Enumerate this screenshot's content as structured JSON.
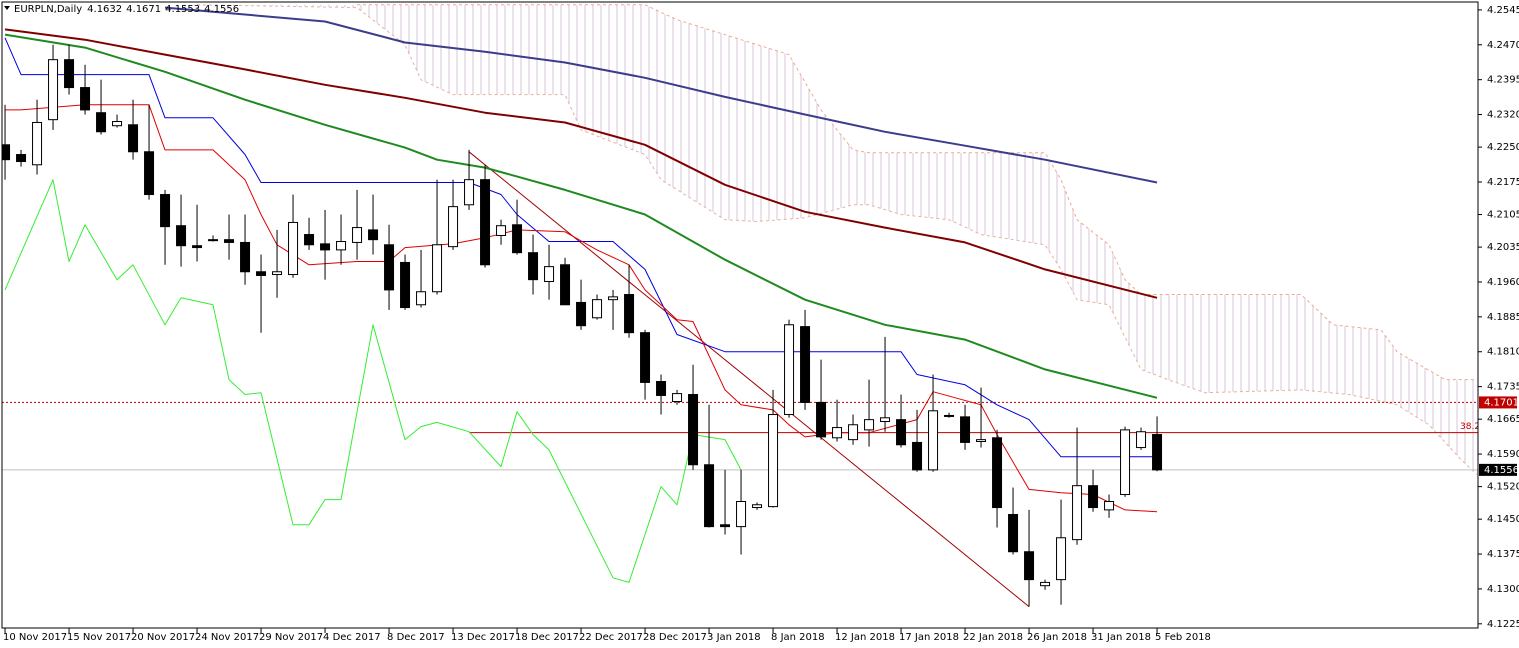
{
  "chart_data": {
    "type": "candlestick",
    "symbol": "EURPLN,Daily",
    "categories": [
      "10 Nov 2017",
      null,
      null,
      null,
      "15 Nov 2017",
      null,
      null,
      null,
      "20 Nov 2017",
      null,
      null,
      null,
      "24 Nov 2017",
      null,
      null,
      null,
      "29 Nov 2017",
      null,
      null,
      null,
      "4 Dec 2017",
      null,
      null,
      null,
      "8 Dec 2017",
      null,
      null,
      null,
      "13 Dec 2017",
      null,
      null,
      null,
      "18 Dec 2017",
      null,
      null,
      null,
      "22 Dec 2017",
      null,
      null,
      null,
      "28 Dec 2017",
      null,
      null,
      null,
      "3 Jan 2018",
      null,
      null,
      null,
      "8 Jan 2018",
      null,
      null,
      null,
      "12 Jan 2018",
      null,
      null,
      null,
      "17 Jan 2018",
      null,
      null,
      null,
      "22 Jan 2018",
      null,
      null,
      null,
      "26 Jan 2018",
      null,
      null,
      null,
      "31 Jan 2018",
      null,
      null,
      null,
      "5 Feb 2018"
    ],
    "open": [
      4.2255,
      4.2234,
      4.2212,
      4.2309,
      4.2438,
      4.2378,
      4.2324,
      4.2296,
      4.2298,
      4.224,
      4.2148,
      4.2081,
      4.2038,
      4.2051,
      4.2051,
      4.2045,
      4.1982,
      4.1976,
      4.1976,
      4.2062,
      4.2042,
      4.2029,
      4.2045,
      4.2072,
      4.204,
      4.2002,
      4.1911,
      4.1939,
      4.2036,
      4.2126,
      4.218,
      4.206,
      4.2083,
      4.2023,
      4.1961,
      4.1997,
      4.1916,
      4.1883,
      4.1922,
      4.1933,
      4.1851,
      4.1746,
      4.1703,
      4.1718,
      4.1567,
      4.1438,
      4.1434,
      4.1475,
      4.1477,
      4.1675,
      4.1864,
      4.1701,
      4.1625,
      4.1621,
      4.1642,
      4.166,
      4.1664,
      4.1615,
      4.1556,
      4.1673,
      4.167,
      4.1617,
      4.1625,
      4.146,
      4.138,
      4.1307,
      4.132,
      4.1406,
      4.1522,
      4.147,
      4.1503,
      4.1604,
      4.1632
    ],
    "high": [
      4.2341,
      4.2244,
      4.2352,
      4.247,
      4.247,
      4.2427,
      4.2395,
      4.232,
      4.2352,
      4.2341,
      4.2158,
      4.2148,
      4.2126,
      4.206,
      4.2105,
      4.2105,
      4.2019,
      4.2072,
      4.2148,
      4.2098,
      4.2115,
      4.2105,
      4.2158,
      4.2148,
      4.2083,
      4.2019,
      4.2029,
      4.218,
      4.218,
      4.2244,
      4.2212,
      4.2094,
      4.2137,
      4.2062,
      4.204,
      4.2012,
      4.1965,
      4.1933,
      4.1943,
      4.1997,
      4.1857,
      4.1761,
      4.1728,
      4.1782,
      4.1696,
      4.1556,
      4.1556,
      4.1486,
      4.1728,
      4.1879,
      4.19,
      4.1793,
      4.1707,
      4.1675,
      4.175,
      4.1842,
      4.1718,
      4.1685,
      4.1761,
      4.1679,
      4.1696,
      4.1733,
      4.1642,
      4.1518,
      4.147,
      4.132,
      4.1492,
      4.1647,
      4.1556,
      4.1503,
      4.1649,
      4.1647,
      4.1671
    ],
    "low": [
      4.218,
      4.2208,
      4.2191,
      4.2287,
      4.2363,
      4.232,
      4.2277,
      4.2292,
      4.2223,
      4.2137,
      4.1997,
      4.1993,
      4.2004,
      4.2047,
      4.2008,
      4.1954,
      4.1851,
      4.1926,
      4.1969,
      4.2029,
      4.1965,
      4.1997,
      4.2008,
      4.2019,
      4.19,
      4.19,
      4.1905,
      4.1933,
      4.2029,
      4.2115,
      4.1991,
      4.204,
      4.2019,
      4.1933,
      4.1922,
      4.1911,
      4.1857,
      4.1879,
      4.1857,
      4.184,
      4.1707,
      4.1675,
      4.1696,
      4.1556,
      4.1432,
      4.1417,
      4.1374,
      4.147,
      4.1475,
      4.1668,
      4.1685,
      4.1621,
      4.1617,
      4.161,
      4.1606,
      4.1638,
      4.1604,
      4.1552,
      4.1552,
      4.1668,
      4.1599,
      4.1604,
      4.1432,
      4.1374,
      4.1262,
      4.1298,
      4.1266,
      4.1395,
      4.1466,
      4.1453,
      4.1498,
      4.1599,
      4.1553
    ],
    "close": [
      4.2223,
      4.2219,
      4.2303,
      4.2438,
      4.2378,
      4.233,
      4.2283,
      4.2305,
      4.224,
      4.2148,
      4.2079,
      4.2038,
      4.2034,
      4.2051,
      4.2045,
      4.1982,
      4.1974,
      4.1982,
      4.2088,
      4.204,
      4.2029,
      4.2047,
      4.2077,
      4.2051,
      4.1943,
      4.1905,
      4.1939,
      4.204,
      4.2122,
      4.218,
      4.1997,
      4.2081,
      4.2023,
      4.1965,
      4.1993,
      4.1911,
      4.1866,
      4.1922,
      4.1928,
      4.1851,
      4.1744,
      4.1716,
      4.172,
      4.1567,
      4.1434,
      4.1434,
      4.1488,
      4.1481,
      4.1675,
      4.1868,
      4.1701,
      4.1627,
      4.1647,
      4.1653,
      4.1664,
      4.1668,
      4.161,
      4.1556,
      4.1683,
      4.1673,
      4.1615,
      4.1621,
      4.1475,
      4.138,
      4.132,
      4.1314,
      4.141,
      4.1522,
      4.1475,
      4.1488,
      4.1642,
      4.1638,
      4.1556
    ],
    "xlim": [
      -0.19,
      92.06
    ],
    "ylim": [
      4.1216,
      4.2562
    ],
    "yticks": [
      4.2545,
      {
        "value": 4.247,
        "label": "4.2470"
      },
      4.2395,
      {
        "value": 4.232,
        "label": "4.2320"
      },
      {
        "value": 4.225,
        "label": "4.2250"
      },
      4.2175,
      4.2105,
      4.2035,
      {
        "value": 4.196,
        "label": "4.1960"
      },
      4.1885,
      {
        "value": 4.181,
        "label": "4.1810"
      },
      4.1735,
      4.1665,
      {
        "value": 4.159,
        "label": "4.1590"
      },
      {
        "value": 4.152,
        "label": "4.1520"
      },
      {
        "value": 4.145,
        "label": "4.1450"
      },
      4.1375,
      {
        "value": 4.13,
        "label": "4.1300"
      },
      4.1225
    ],
    "cloud": {
      "color": "#d8c4dc",
      "upper": {
        "color": "#f0a88c",
        "x": [
          22,
          40,
          42,
          49,
          51,
          53,
          54,
          65,
          66,
          67,
          69,
          70,
          71,
          81,
          83,
          86,
          87,
          90,
          92
        ],
        "values": [
          4.2556,
          4.2556,
          4.2524,
          4.2449,
          4.233,
          4.2244,
          4.2238,
          4.2238,
          4.218,
          4.2094,
          4.204,
          4.1965,
          4.1933,
          4.1933,
          4.1868,
          4.1857,
          4.181,
          4.175,
          4.175
        ]
      },
      "lower": {
        "color": "#e8b0a0",
        "x": [
          12,
          22,
          25,
          26,
          28,
          35,
          36,
          40,
          41,
          43,
          45,
          47,
          50,
          53,
          54,
          56,
          59,
          61,
          65,
          66,
          67,
          69,
          71,
          73,
          75,
          81,
          84,
          87,
          89,
          91,
          92
        ],
        "values": [
          4.2556,
          4.255,
          4.247,
          4.2395,
          4.2363,
          4.2363,
          4.2287,
          4.2234,
          4.218,
          4.2137,
          4.2094,
          4.209,
          4.2098,
          4.2126,
          4.2126,
          4.2105,
          4.2094,
          4.2062,
          4.204,
          4.1987,
          4.1922,
          4.1911,
          4.1772,
          4.1746,
          4.1722,
          4.1728,
          4.1718,
          4.1696,
          4.1653,
          4.1578,
          4.1546
        ]
      }
    },
    "lines": [
      {
        "color": "#3c3c8c",
        "width": 2,
        "x": [
          10,
          20,
          25,
          30,
          35,
          40,
          45,
          50,
          55,
          60,
          65,
          72
        ],
        "values": [
          4.255,
          4.252,
          4.2475,
          4.2455,
          4.2432,
          4.2399,
          4.2358,
          4.232,
          4.2283,
          4.2253,
          4.2223,
          4.2174
        ]
      },
      {
        "color": "#800000",
        "width": 2,
        "x": [
          0,
          5,
          10,
          15,
          20,
          25,
          30,
          35,
          40,
          45,
          50,
          55,
          60,
          65,
          72
        ],
        "values": [
          4.2503,
          4.2481,
          4.2449,
          4.2417,
          4.2384,
          4.2356,
          4.2324,
          4.2303,
          4.2255,
          4.2169,
          4.2111,
          4.2077,
          4.2045,
          4.1987,
          4.1926
        ]
      },
      {
        "color": "#1f8a1f",
        "width": 2,
        "x": [
          0,
          5,
          10,
          15,
          20,
          25,
          27,
          30,
          35,
          40,
          45,
          50,
          55,
          60,
          65,
          72
        ],
        "values": [
          4.2492,
          4.2464,
          4.2412,
          4.2352,
          4.2298,
          4.2249,
          4.2223,
          4.2206,
          4.2158,
          4.2105,
          4.2008,
          4.1922,
          4.1868,
          4.1836,
          4.1772,
          4.1711
        ]
      },
      {
        "color": "#0000e0",
        "width": 1,
        "x": [
          0,
          1,
          9,
          10,
          13,
          15,
          16,
          29,
          31,
          32,
          34,
          38,
          40,
          42,
          45,
          56,
          57,
          60,
          62,
          64,
          66,
          72
        ],
        "values": [
          4.2485,
          4.2406,
          4.2406,
          4.2313,
          4.2313,
          4.2234,
          4.2174,
          4.2174,
          4.2148,
          4.2105,
          4.2047,
          4.2047,
          4.1987,
          4.1847,
          4.181,
          4.181,
          4.1761,
          4.1739,
          4.1696,
          4.1664,
          4.1584,
          4.1584
        ]
      },
      {
        "color": "#e00000",
        "width": 1,
        "x": [
          0,
          1,
          5,
          9,
          10,
          13,
          15,
          16,
          17,
          19,
          22,
          24,
          25,
          28,
          30,
          32,
          35,
          37,
          39,
          40,
          42,
          43,
          45,
          46,
          48,
          49,
          50,
          52,
          54,
          57,
          58,
          61,
          62,
          64,
          66,
          68,
          70,
          72
        ],
        "values": [
          4.233,
          4.233,
          4.2341,
          4.2341,
          4.2244,
          4.2244,
          4.218,
          4.2105,
          4.204,
          4.1997,
          4.2004,
          4.2004,
          4.2034,
          4.2042,
          4.2055,
          4.2072,
          4.2068,
          4.2029,
          4.1997,
          4.1943,
          4.1879,
          4.1875,
          4.1728,
          4.1696,
          4.1685,
          4.1653,
          4.1627,
          4.1636,
          4.1636,
          4.1664,
          4.1724,
          4.1696,
          4.1632,
          4.1514,
          4.1507,
          4.1503,
          4.147,
          4.1466
        ]
      },
      {
        "color": "#33ee33",
        "width": 1,
        "x": [
          0,
          3,
          4,
          5,
          7,
          8,
          10,
          11,
          13,
          14,
          15,
          16,
          18,
          19,
          20,
          21,
          23,
          25,
          26,
          27,
          29,
          31,
          32,
          33,
          34,
          38,
          39,
          41,
          42,
          43,
          45,
          46
        ],
        "values": [
          4.1943,
          4.218,
          4.2004,
          4.2083,
          4.1965,
          4.1997,
          4.1868,
          4.1926,
          4.1911,
          4.175,
          4.1718,
          4.1722,
          4.1438,
          4.1438,
          4.1492,
          4.1492,
          4.1868,
          4.1621,
          4.1649,
          4.1658,
          4.1638,
          4.1563,
          4.1681,
          4.1632,
          4.1599,
          4.1324,
          4.1314,
          4.152,
          4.1481,
          4.1632,
          4.1621,
          4.1556
        ]
      }
    ],
    "trendline": {
      "color": "#a00000",
      "x": [
        29,
        64
      ],
      "values": [
        4.224,
        4.1262
      ]
    },
    "fibo": {
      "label": "38.2",
      "color": "#c00000",
      "x": 29,
      "value": 4.1636
    },
    "level": {
      "value": 4.1701,
      "color": "#c00000"
    },
    "bid_color": "#c0c0c0"
  }
}
